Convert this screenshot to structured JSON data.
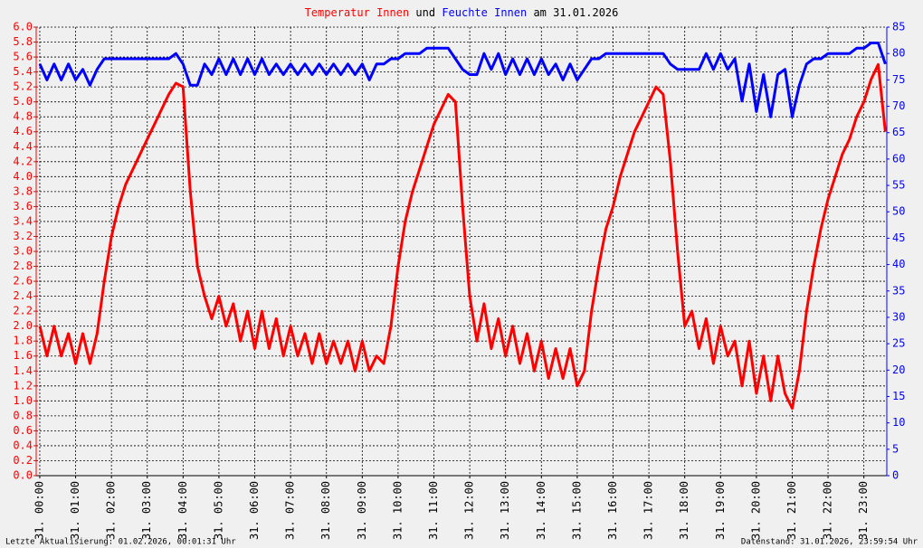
{
  "chart_data": {
    "type": "line",
    "title_parts": [
      {
        "text": "Temperatur Innen",
        "color": "#ff0000"
      },
      {
        "text": " und ",
        "color": "#000000"
      },
      {
        "text": "Feuchte Innen",
        "color": "#0000ff"
      },
      {
        "text": " am 31.01.2026",
        "color": "#000000"
      }
    ],
    "footer_left": "Letzte Aktualisierung: 01.02.2026, 00:01:31 Uhr",
    "footer_right": "Datenstand: 31.01.2026, 23:59:54 Uhr",
    "x": [
      0,
      0.2,
      0.4,
      0.6,
      0.8,
      1,
      1.2,
      1.4,
      1.6,
      1.8,
      2,
      2.2,
      2.4,
      2.6,
      2.8,
      3,
      3.2,
      3.4,
      3.6,
      3.8,
      4,
      4.2,
      4.4,
      4.6,
      4.8,
      5,
      5.2,
      5.4,
      5.6,
      5.8,
      6,
      6.2,
      6.4,
      6.6,
      6.8,
      7,
      7.2,
      7.4,
      7.6,
      7.8,
      8,
      8.2,
      8.4,
      8.6,
      8.8,
      9,
      9.2,
      9.4,
      9.6,
      9.8,
      10,
      10.2,
      10.4,
      10.6,
      10.8,
      11,
      11.2,
      11.4,
      11.6,
      11.8,
      12,
      12.2,
      12.4,
      12.6,
      12.8,
      13,
      13.2,
      13.4,
      13.6,
      13.8,
      14,
      14.2,
      14.4,
      14.6,
      14.8,
      15,
      15.2,
      15.4,
      15.6,
      15.8,
      16,
      16.2,
      16.4,
      16.6,
      16.8,
      17,
      17.2,
      17.4,
      17.6,
      17.8,
      18,
      18.2,
      18.4,
      18.6,
      18.8,
      19,
      19.2,
      19.4,
      19.6,
      19.8,
      20,
      20.2,
      20.4,
      20.6,
      20.8,
      21,
      21.2,
      21.4,
      21.6,
      21.8,
      22,
      22.2,
      22.4,
      22.6,
      22.8,
      23,
      23.2,
      23.4,
      23.6
    ],
    "xlim": [
      -0.1,
      23.64
    ],
    "xticks": [
      {
        "value": 0,
        "label": "31. 00:00"
      },
      {
        "value": 1,
        "label": "31. 01:00"
      },
      {
        "value": 2,
        "label": "31. 02:00"
      },
      {
        "value": 3,
        "label": "31. 03:00"
      },
      {
        "value": 4,
        "label": "31. 04:00"
      },
      {
        "value": 5,
        "label": "31. 05:00"
      },
      {
        "value": 6,
        "label": "31. 06:00"
      },
      {
        "value": 7,
        "label": "31. 07:00"
      },
      {
        "value": 8,
        "label": "31. 08:00"
      },
      {
        "value": 9,
        "label": "31. 09:00"
      },
      {
        "value": 10,
        "label": "31. 10:00"
      },
      {
        "value": 11,
        "label": "31. 11:00"
      },
      {
        "value": 12,
        "label": "31. 12:00"
      },
      {
        "value": 13,
        "label": "31. 13:00"
      },
      {
        "value": 14,
        "label": "31. 14:00"
      },
      {
        "value": 15,
        "label": "31. 15:00"
      },
      {
        "value": 16,
        "label": "31. 16:00"
      },
      {
        "value": 17,
        "label": "31. 17:00"
      },
      {
        "value": 18,
        "label": "31. 18:00"
      },
      {
        "value": 19,
        "label": "31. 19:00"
      },
      {
        "value": 20,
        "label": "31. 20:00"
      },
      {
        "value": 21,
        "label": "31. 21:00"
      },
      {
        "value": 22,
        "label": "31. 22:00"
      },
      {
        "value": 23,
        "label": "31. 23:00"
      }
    ],
    "ylim": [
      0,
      6
    ],
    "yticks": [
      {
        "value": 0,
        "label": "0.0"
      },
      0.2,
      0.4,
      0.6,
      0.8,
      {
        "value": 1,
        "label": "1.0"
      },
      1.2,
      1.4,
      1.6,
      1.8,
      {
        "value": 2,
        "label": "2.0"
      },
      2.2,
      2.4,
      2.6,
      2.8,
      {
        "value": 3,
        "label": "3.0"
      },
      3.2,
      3.4,
      3.6,
      3.8,
      {
        "value": 4,
        "label": "4.0"
      },
      4.2,
      4.4,
      4.6,
      4.8,
      {
        "value": 5,
        "label": "5.0"
      },
      5.2,
      5.4,
      5.6,
      5.8,
      {
        "value": 6,
        "label": "6.0"
      }
    ],
    "y2lim": [
      0,
      85
    ],
    "y2ticks": [
      0,
      5,
      10,
      15,
      20,
      25,
      30,
      35,
      40,
      45,
      50,
      55,
      60,
      65,
      70,
      75,
      80,
      85
    ],
    "ycolor": "#ff0000",
    "y2color": "#0000ff",
    "grid": true,
    "series": [
      {
        "name": "Temperatur Innen",
        "color": "#ff0000",
        "values": [
          2.0,
          1.6,
          2.0,
          1.6,
          1.9,
          1.5,
          1.9,
          1.5,
          1.9,
          2.6,
          3.2,
          3.6,
          3.9,
          4.1,
          4.3,
          4.5,
          4.7,
          4.9,
          5.1,
          5.25,
          5.2,
          3.8,
          2.8,
          2.4,
          2.1,
          2.4,
          2.0,
          2.3,
          1.8,
          2.2,
          1.7,
          2.2,
          1.7,
          2.1,
          1.6,
          2.0,
          1.6,
          1.9,
          1.5,
          1.9,
          1.5,
          1.8,
          1.5,
          1.8,
          1.4,
          1.8,
          1.4,
          1.6,
          1.5,
          2.0,
          2.8,
          3.4,
          3.8,
          4.1,
          4.4,
          4.7,
          4.9,
          5.1,
          5.0,
          3.6,
          2.4,
          1.8,
          2.3,
          1.7,
          2.1,
          1.6,
          2.0,
          1.5,
          1.9,
          1.4,
          1.8,
          1.3,
          1.7,
          1.3,
          1.7,
          1.2,
          1.4,
          2.2,
          2.8,
          3.3,
          3.6,
          4.0,
          4.3,
          4.6,
          4.8,
          5.0,
          5.2,
          5.1,
          4.2,
          3.0,
          2.0,
          2.2,
          1.7,
          2.1,
          1.5,
          2.0,
          1.6,
          1.8,
          1.2,
          1.8,
          1.1,
          1.6,
          1.0,
          1.6,
          1.1,
          0.9,
          1.4,
          2.2,
          2.8,
          3.3,
          3.7,
          4.0,
          4.3,
          4.5,
          4.8,
          5.0,
          5.3,
          5.5,
          4.6
        ]
      },
      {
        "name": "Feuchte Innen",
        "color": "#0000ff",
        "axis": "y2",
        "values": [
          78,
          75,
          78,
          75,
          78,
          75,
          77,
          74,
          77,
          79,
          79,
          79,
          79,
          79,
          79,
          79,
          79,
          79,
          79,
          80,
          78,
          74,
          74,
          78,
          76,
          79,
          76,
          79,
          76,
          79,
          76,
          79,
          76,
          78,
          76,
          78,
          76,
          78,
          76,
          78,
          76,
          78,
          76,
          78,
          76,
          78,
          75,
          78,
          78,
          79,
          79,
          80,
          80,
          80,
          81,
          81,
          81,
          81,
          79,
          77,
          76,
          76,
          80,
          77,
          80,
          76,
          79,
          76,
          79,
          76,
          79,
          76,
          78,
          75,
          78,
          75,
          77,
          79,
          79,
          80,
          80,
          80,
          80,
          80,
          80,
          80,
          80,
          80,
          78,
          77,
          77,
          77,
          77,
          80,
          77,
          80,
          77,
          79,
          71,
          78,
          69,
          76,
          68,
          76,
          77,
          68,
          74,
          78,
          79,
          79,
          80,
          80,
          80,
          80,
          81,
          81,
          82,
          82,
          78
        ]
      }
    ]
  }
}
